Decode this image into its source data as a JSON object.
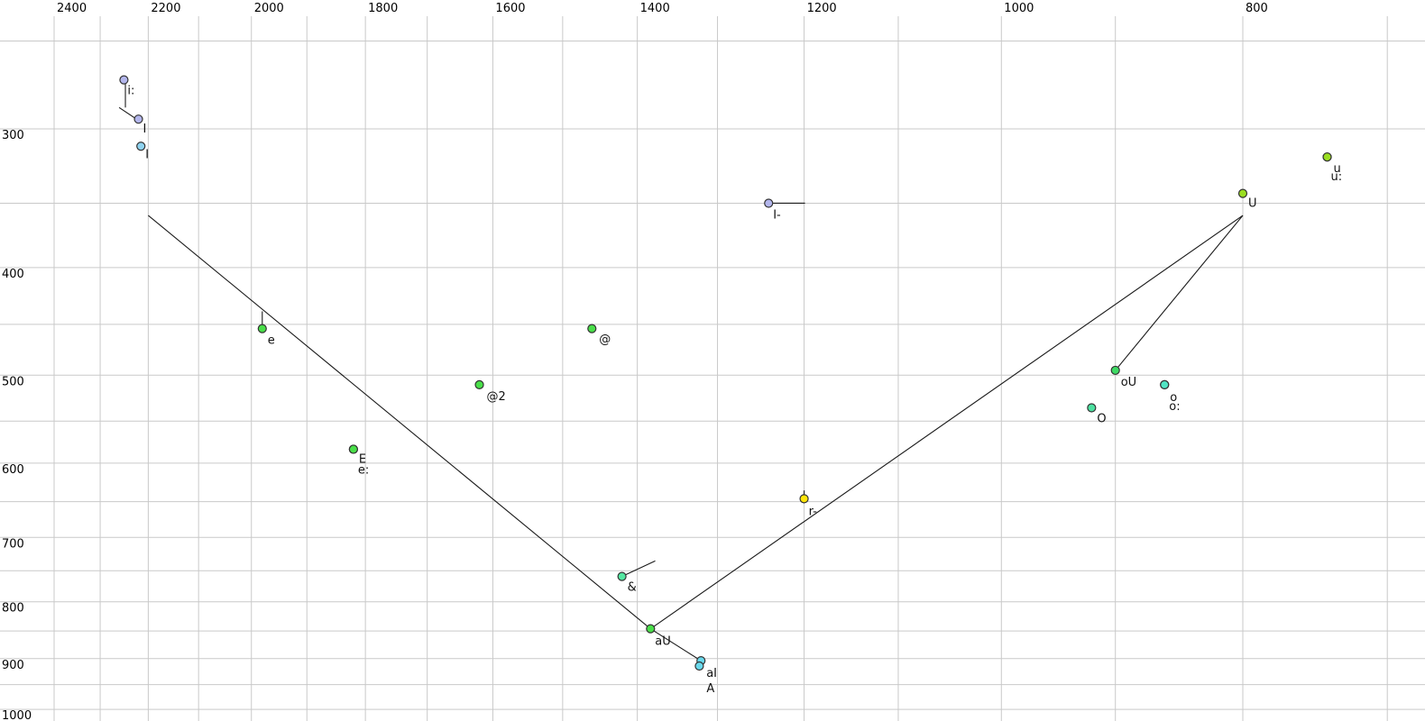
{
  "chart_data": {
    "type": "scatter",
    "title": "",
    "xlabel": "",
    "ylabel": "",
    "description": "Vowel formant plot: F2 (Hz, log scale, decreasing left-to-right, ticks on top) vs F1 (Hz, log scale, increasing downward, ticks on left). Points are vowels labeled in SAMPA; lines show diphthong trajectories.",
    "x_axis": {
      "unit": "Hz",
      "scale": "log",
      "reversed": true,
      "tick_side": "top",
      "range": [
        2520,
        676
      ],
      "major_ticks": [
        2400,
        2200,
        2000,
        1800,
        1600,
        1400,
        1200,
        1000,
        800
      ],
      "minor_ticks": [
        2300,
        2100,
        1900,
        1700,
        1500,
        1300,
        1100,
        900,
        700
      ]
    },
    "y_axis": {
      "unit": "Hz",
      "scale": "log",
      "tick_side": "left",
      "range": [
        241,
        1017
      ],
      "major_ticks": [
        300,
        400,
        500,
        600,
        700,
        800,
        900,
        1000
      ],
      "minor_ticks": [
        250,
        350,
        450,
        550,
        650,
        750,
        850,
        950
      ]
    },
    "grid": true,
    "grid_color": "#c9c9c9",
    "line_color": "#1a1a1a",
    "label_color": "#111111",
    "point_stroke": "#333333",
    "points": [
      {
        "label": "i:",
        "f2": 2250,
        "f1": 271,
        "color": "#b3b6ec",
        "label_offset": [
          4,
          6
        ]
      },
      {
        "label": "I",
        "f2": 2220,
        "f1": 294,
        "color": "#b3b6ec",
        "label_offset": [
          5,
          5
        ]
      },
      {
        "label": "I",
        "f2": 2215,
        "f1": 311,
        "color": "#8fd3f0",
        "label_offset": [
          5,
          3
        ]
      },
      {
        "label": "e",
        "f2": 1980,
        "f1": 454,
        "color": "#49df49",
        "label_offset": [
          6,
          7
        ]
      },
      {
        "label": "E",
        "f2": 1820,
        "f1": 583,
        "color": "#49df49",
        "label_offset": [
          6,
          5
        ]
      },
      {
        "label": "e:",
        "f2": 1820,
        "f1": 583,
        "color": "#49df49",
        "label_offset": [
          5,
          17
        ]
      },
      {
        "label": "@",
        "f2": 1460,
        "f1": 454,
        "color": "#49df49",
        "label_offset": [
          8,
          6
        ]
      },
      {
        "label": "@2",
        "f2": 1620,
        "f1": 510,
        "color": "#49df49",
        "label_offset": [
          8,
          7
        ]
      },
      {
        "label": "&",
        "f2": 1420,
        "f1": 759,
        "color": "#54e8a2",
        "label_offset": [
          6,
          6
        ]
      },
      {
        "label": "aU",
        "f2": 1383,
        "f1": 846,
        "color": "#49df49",
        "label_offset": [
          5,
          8
        ]
      },
      {
        "label": "aI",
        "f2": 1320,
        "f1": 904,
        "color": "#69d9ec",
        "label_offset": [
          6,
          8
        ]
      },
      {
        "label": "A",
        "f2": 1322,
        "f1": 914,
        "color": "#69d9ec",
        "label_offset": [
          8,
          19
        ]
      },
      {
        "label": "I-",
        "f2": 1240,
        "f1": 350,
        "color": "#b3b6ec",
        "label_offset": [
          5,
          7
        ]
      },
      {
        "label": "r-",
        "f2": 1200,
        "f1": 646,
        "color": "#ffe60a",
        "label_offset": [
          5,
          8
        ]
      },
      {
        "label": "U",
        "f2": 800,
        "f1": 343,
        "color": "#9ade21",
        "label_offset": [
          6,
          5
        ]
      },
      {
        "label": "u",
        "f2": 740,
        "f1": 318,
        "color": "#9ade21",
        "label_offset": [
          7,
          7
        ]
      },
      {
        "label": "u:",
        "f2": 740,
        "f1": 318,
        "color": "#9ade21",
        "label_offset": [
          4,
          16
        ]
      },
      {
        "label": "oU",
        "f2": 900,
        "f1": 495,
        "color": "#3eda64",
        "label_offset": [
          6,
          7
        ]
      },
      {
        "label": "o",
        "f2": 860,
        "f1": 510,
        "color": "#52e5c4",
        "label_offset": [
          6,
          8
        ]
      },
      {
        "label": "o:",
        "f2": 860,
        "f1": 510,
        "color": "#52e5c4",
        "label_offset": [
          5,
          18
        ]
      },
      {
        "label": "O",
        "f2": 920,
        "f1": 535,
        "color": "#4ce0a0",
        "label_offset": [
          6,
          6
        ]
      }
    ],
    "trajectories": [
      {
        "name": "front-to-aU-diagonal",
        "from": [
          2200,
          359
        ],
        "to": [
          1383,
          846
        ]
      },
      {
        "name": "aU-to-aI",
        "from": [
          1383,
          846
        ],
        "to": [
          1320,
          904
        ]
      },
      {
        "name": "aU-to-high-back",
        "from": [
          1383,
          846
        ],
        "to": [
          800,
          359
        ]
      },
      {
        "name": "oU-to-high-back",
        "from": [
          900,
          495
        ],
        "to": [
          800,
          359
        ]
      },
      {
        "name": "i-stem",
        "from": [
          2247,
          273
        ],
        "to": [
          2247,
          287
        ]
      },
      {
        "name": "into-I",
        "from": [
          2260,
          287
        ],
        "to": [
          2224,
          294
        ]
      },
      {
        "name": "e-stem",
        "from": [
          1980,
          438
        ],
        "to": [
          1980,
          455
        ]
      },
      {
        "name": "ash-tick",
        "from": [
          1420,
          759
        ],
        "to": [
          1377,
          735
        ]
      },
      {
        "name": "I-bar-tick",
        "from": [
          1240,
          350
        ],
        "to": [
          1199,
          350
        ]
      },
      {
        "name": "r-tick",
        "from": [
          1200,
          635
        ],
        "to": [
          1200,
          641
        ]
      }
    ]
  }
}
